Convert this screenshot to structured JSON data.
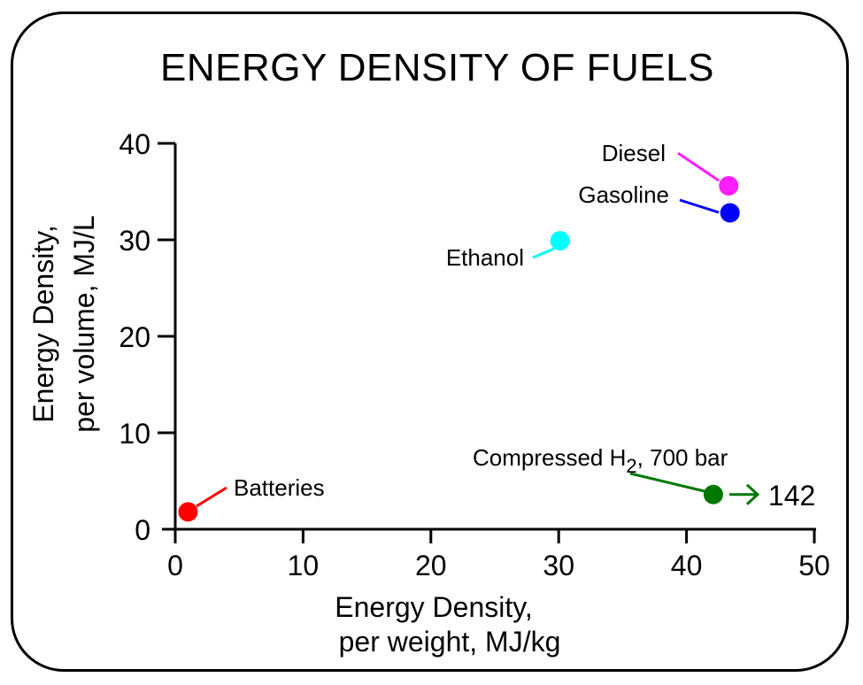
{
  "chart_data": {
    "type": "scatter",
    "title": "ENERGY DENSITY OF FUELS",
    "xlabel": [
      "Energy Density,",
      "per weight, MJ/kg"
    ],
    "ylabel": [
      "Energy Density,",
      "per volume, MJ/L"
    ],
    "xlim": [
      0,
      50
    ],
    "ylim": [
      0,
      40
    ],
    "xticks": [
      0,
      10,
      20,
      30,
      40,
      50
    ],
    "yticks": [
      0,
      10,
      20,
      30,
      40
    ],
    "grid": false,
    "points": [
      {
        "name": "Diesel",
        "x": 43.3,
        "y": 35.6,
        "color": "#ff1eff"
      },
      {
        "name": "Gasoline",
        "x": 43.4,
        "y": 32.8,
        "color": "#0000ff"
      },
      {
        "name": "Ethanol",
        "x": 30.1,
        "y": 29.9,
        "color": "#00ffff"
      },
      {
        "name": "Batteries",
        "x": 1.0,
        "y": 1.8,
        "color": "#ff0000"
      },
      {
        "name": "Compressed H",
        "subscript": "2",
        "suffix": ", 700 bar",
        "x": 42.1,
        "y": 3.6,
        "color": "#007700",
        "offscale_value": "142"
      }
    ]
  }
}
